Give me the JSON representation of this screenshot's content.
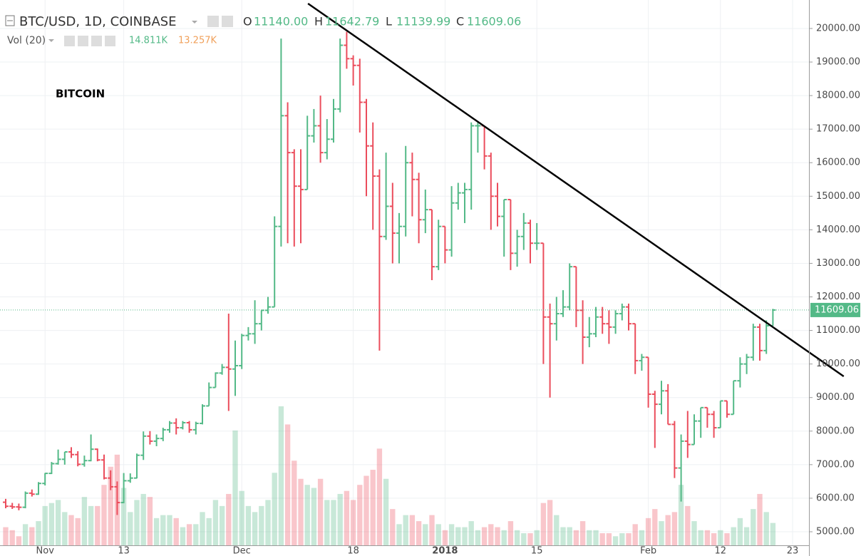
{
  "chart_data": {
    "type": "ohlc",
    "title": "BTC/USD, 1D, COINBASE",
    "annotation": "BITCOIN",
    "up_color": "#53b987",
    "down_color": "#eb4d5c",
    "grid": true,
    "x": [
      0,
      1,
      2,
      3,
      4,
      5,
      6,
      7,
      8,
      9,
      10,
      11,
      12,
      13,
      14,
      15,
      16,
      17,
      18,
      19,
      20,
      21,
      22,
      23,
      24,
      25,
      26,
      27,
      28,
      29,
      30,
      31,
      32,
      33,
      34,
      35,
      36,
      37,
      38,
      39,
      40,
      41,
      42,
      43,
      44,
      45,
      46,
      47,
      48,
      49,
      50,
      51,
      52,
      53,
      54,
      55,
      56,
      57,
      58,
      59,
      60,
      61,
      62,
      63,
      64,
      65,
      66,
      67,
      68,
      69,
      70,
      71,
      72,
      73,
      74,
      75,
      76,
      77,
      78,
      79,
      80,
      81,
      82,
      83,
      84,
      85,
      86,
      87,
      88,
      89,
      90,
      91,
      92,
      93,
      94,
      95,
      96,
      97,
      98,
      99,
      100,
      101,
      102,
      103,
      104,
      105,
      106,
      107,
      108,
      109,
      110,
      111,
      112,
      113,
      114,
      115,
      116,
      117
    ],
    "xlim": [
      -0.87,
      122.5
    ],
    "xticks": [
      {
        "value": 6,
        "label": "Nov"
      },
      {
        "value": 18,
        "label": "13"
      },
      {
        "value": 36,
        "label": "Dec"
      },
      {
        "value": 53,
        "label": "18"
      },
      {
        "value": 67,
        "label": "2018"
      },
      {
        "value": 81,
        "label": "15"
      },
      {
        "value": 98,
        "label": "Feb"
      },
      {
        "value": 109,
        "label": "12"
      },
      {
        "value": 120,
        "label": "23"
      }
    ],
    "ylim": [
      4596,
      20849
    ],
    "yticks": [
      {
        "value": 5000,
        "label": "5000.00"
      },
      {
        "value": 6000,
        "label": "6000.00"
      },
      {
        "value": 7000,
        "label": "7000.00"
      },
      {
        "value": 8000,
        "label": "8000.00"
      },
      {
        "value": 9000,
        "label": "9000.00"
      },
      {
        "value": 10000,
        "label": "10000.00"
      },
      {
        "value": 11000,
        "label": "11000.00"
      },
      {
        "value": 12000,
        "label": "12000.00"
      },
      {
        "value": 13000,
        "label": "13000.00"
      },
      {
        "value": 14000,
        "label": "14000.00"
      },
      {
        "value": 15000,
        "label": "15000.00"
      },
      {
        "value": 16000,
        "label": "16000.00"
      },
      {
        "value": 17000,
        "label": "17000.00"
      },
      {
        "value": 18000,
        "label": "18000.00"
      },
      {
        "value": 19000,
        "label": "19000.00"
      },
      {
        "value": 20000,
        "label": "20000.00"
      }
    ],
    "series": [
      {
        "name": "BTC/USD",
        "open": [
          5880,
          5760,
          5740,
          5730,
          6150,
          6120,
          6440,
          6740,
          7030,
          7160,
          7380,
          7300,
          7010,
          7120,
          7460,
          7140,
          6600,
          6340,
          5870,
          6520,
          6600,
          7280,
          7850,
          7700,
          7780,
          8040,
          8240,
          8100,
          8250,
          8040,
          8230,
          8750,
          9300,
          9730,
          9900,
          9850,
          9950,
          10850,
          10900,
          11200,
          11600,
          11700,
          14100,
          17400,
          16300,
          15300,
          15200,
          16800,
          17100,
          16300,
          16700,
          17600,
          19500,
          19100,
          18900,
          17800,
          16500,
          15600,
          13800,
          14700,
          13900,
          14100,
          16000,
          15500,
          14300,
          14600,
          12900,
          14100,
          13400,
          14800,
          15100,
          15200,
          17100,
          17100,
          16200,
          15000,
          14400,
          14900,
          13300,
          13800,
          14200,
          13600,
          13600,
          11400,
          11200,
          11500,
          11700,
          12900,
          11600,
          10800,
          10900,
          11400,
          11200,
          11100,
          11500,
          11700,
          11200,
          10100,
          10200,
          9100,
          8800,
          9200,
          8200,
          6900,
          7700,
          7600,
          8300,
          8700,
          8500,
          8100,
          8900,
          8500,
          9500,
          10000,
          10200,
          11100,
          10400,
          11140
        ],
        "high": [
          5980,
          5860,
          5840,
          6200,
          6260,
          6480,
          6750,
          7080,
          7450,
          7380,
          7520,
          7400,
          7270,
          7900,
          7480,
          7300,
          6830,
          6500,
          6750,
          6740,
          7330,
          7990,
          8000,
          7900,
          8100,
          8300,
          8380,
          8300,
          8300,
          8280,
          8800,
          9450,
          9750,
          10000,
          11500,
          10700,
          10900,
          11100,
          11900,
          11600,
          12000,
          14400,
          19700,
          17800,
          16400,
          16400,
          17400,
          17600,
          18000,
          17300,
          17900,
          19700,
          19900,
          19200,
          19100,
          17900,
          17200,
          15800,
          16300,
          15400,
          14500,
          16500,
          16300,
          15700,
          15200,
          14600,
          14300,
          14100,
          15300,
          15400,
          15400,
          17200,
          17200,
          17100,
          16300,
          15400,
          14900,
          14900,
          14000,
          14500,
          14300,
          14200,
          13600,
          11800,
          12000,
          12200,
          13000,
          12900,
          11900,
          11400,
          11700,
          11700,
          11600,
          11600,
          11800,
          11800,
          11200,
          10300,
          10200,
          9200,
          9500,
          9400,
          8300,
          7900,
          8600,
          8500,
          8700,
          8700,
          8600,
          8900,
          8900,
          9500,
          10200,
          10300,
          11200,
          11200,
          11300,
          11642.79
        ],
        "low": [
          5700,
          5680,
          5640,
          5700,
          6050,
          6100,
          6380,
          6720,
          7000,
          7000,
          7200,
          6950,
          6940,
          7100,
          7100,
          6560,
          6240,
          5500,
          5850,
          6460,
          6590,
          7140,
          7600,
          7550,
          7700,
          7950,
          7900,
          8050,
          7950,
          7900,
          8200,
          8750,
          9300,
          9680,
          8600,
          9050,
          9850,
          10700,
          10600,
          11000,
          11500,
          11700,
          13500,
          13600,
          13500,
          13600,
          15200,
          16600,
          16000,
          16100,
          16600,
          17500,
          18800,
          18300,
          16900,
          15000,
          14000,
          10400,
          13700,
          13000,
          13000,
          13800,
          14400,
          13600,
          13900,
          12500,
          12800,
          13000,
          13200,
          14600,
          14200,
          14600,
          16300,
          15800,
          14000,
          14100,
          13200,
          12800,
          12900,
          13400,
          13000,
          13400,
          10000,
          9000,
          10700,
          11400,
          11600,
          11100,
          10000,
          10500,
          10800,
          10900,
          10600,
          10900,
          11300,
          11000,
          9700,
          9800,
          8700,
          7500,
          8500,
          8200,
          6600,
          5900,
          7200,
          7600,
          7800,
          8100,
          7800,
          8100,
          8400,
          8500,
          9300,
          9700,
          10100,
          10100,
          10300,
          11139.99
        ],
        "close": [
          5760,
          5740,
          5730,
          6150,
          6120,
          6440,
          6740,
          7030,
          7160,
          7380,
          7300,
          7010,
          7120,
          7460,
          7140,
          6600,
          6340,
          5870,
          6520,
          6600,
          7280,
          7850,
          7700,
          7780,
          8040,
          8240,
          8100,
          8250,
          8040,
          8230,
          8750,
          9300,
          9730,
          9900,
          9850,
          9950,
          10850,
          10900,
          11200,
          11600,
          11700,
          14100,
          17400,
          16300,
          15300,
          15200,
          16800,
          17100,
          16300,
          16700,
          17600,
          19500,
          19100,
          18900,
          17800,
          16500,
          15600,
          13800,
          14700,
          13900,
          14100,
          16000,
          15500,
          14300,
          14600,
          12900,
          14100,
          13400,
          14800,
          15100,
          15200,
          17100,
          17100,
          16200,
          15000,
          14400,
          14900,
          13300,
          13800,
          14200,
          13600,
          13600,
          11400,
          11200,
          11500,
          11700,
          12900,
          11600,
          10800,
          10900,
          11400,
          11200,
          11100,
          11500,
          11700,
          11200,
          10100,
          10200,
          9100,
          8800,
          9200,
          8200,
          6900,
          7700,
          7600,
          8300,
          8700,
          8500,
          8100,
          8900,
          8500,
          9500,
          10000,
          10200,
          11100,
          10400,
          11140,
          11609.06
        ]
      }
    ],
    "volume": {
      "name": "Vol (20)",
      "values": [
        12000,
        10000,
        6000,
        14000,
        12000,
        16000,
        26000,
        28000,
        30000,
        22000,
        20000,
        18000,
        32000,
        26000,
        26000,
        40000,
        52000,
        60000,
        38000,
        22000,
        30000,
        34000,
        32000,
        18000,
        20000,
        20000,
        18000,
        12000,
        14000,
        14000,
        22000,
        18000,
        30000,
        26000,
        34000,
        76000,
        36000,
        26000,
        22000,
        26000,
        30000,
        48000,
        92000,
        80000,
        56000,
        44000,
        40000,
        38000,
        44000,
        30000,
        30000,
        34000,
        36000,
        30000,
        40000,
        46000,
        50000,
        64000,
        44000,
        24000,
        14000,
        20000,
        20000,
        16000,
        14000,
        20000,
        14000,
        10000,
        14000,
        12000,
        12000,
        16000,
        10000,
        12000,
        14000,
        12000,
        10000,
        16000,
        10000,
        8000,
        8000,
        10000,
        28000,
        30000,
        20000,
        12000,
        12000,
        10000,
        16000,
        10000,
        10000,
        8000,
        8000,
        6000,
        8000,
        8000,
        14000,
        10000,
        18000,
        24000,
        16000,
        20000,
        22000,
        40000,
        26000,
        16000,
        10000,
        10000,
        8000,
        10000,
        8000,
        12000,
        18000,
        12000,
        24000,
        34000,
        22000,
        14811
      ]
    },
    "volume_legend": {
      "values": [
        14811,
        13257
      ],
      "value_labels": [
        "14.811K",
        "13.257K"
      ],
      "colors": [
        "#53b987",
        "#f0a05a"
      ]
    },
    "ohlc_legend": {
      "labels": [
        "O",
        "H",
        "L",
        "C"
      ],
      "values": [
        11140,
        11642.79,
        11139.99,
        11609.06
      ],
      "value_labels": [
        "11140.00",
        "11642.79",
        "11139.99",
        "11609.06"
      ]
    },
    "last_price": {
      "value": 11609.06,
      "label": "11609.06"
    },
    "trendline": {
      "x": [
        46.1,
        127.8
      ],
      "y": [
        20743,
        9631
      ],
      "color": "#000000"
    }
  }
}
